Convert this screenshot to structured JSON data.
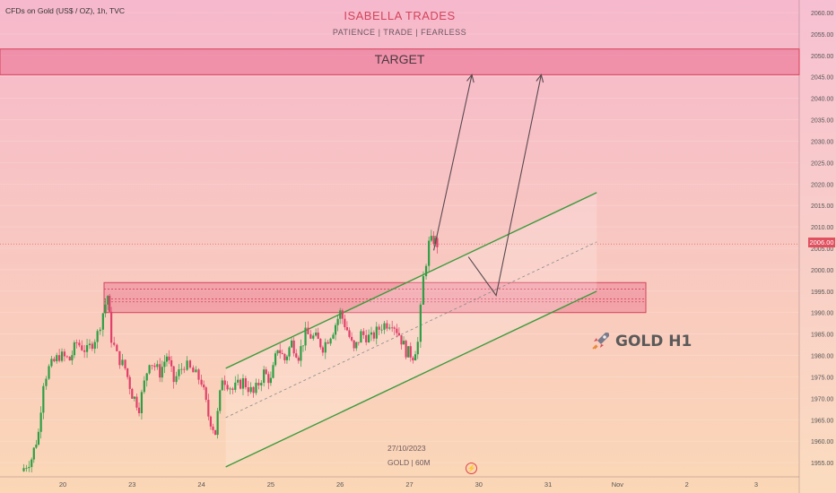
{
  "header": {
    "symbol": "CFDs on Gold (US$ / OZ), 1h, TVC",
    "title": "ISABELLA TRADES",
    "subtitle": "PATIENCE | TRADE | FEARLESS"
  },
  "annotations": {
    "target_label": "TARGET",
    "watermark": "GOLD H1",
    "bottom_date": "27/10/2023",
    "bottom_info": "GOLD | 60M",
    "current_price": "2006.00"
  },
  "colors": {
    "up": "#2e9e44",
    "down": "#e0406a",
    "channel": "#3d9a3d",
    "zone": "#e8718c",
    "arrow": "#5a4a50"
  },
  "chart_data": {
    "type": "candlestick",
    "title": "CFDs on Gold (US$ / OZ), 1h, TVC",
    "ylim": [
      1952,
      2062
    ],
    "y_ticks": [
      1955,
      1960,
      1965,
      1970,
      1975,
      1980,
      1985,
      1990,
      1995,
      2000,
      2005,
      2010,
      2015,
      2020,
      2025,
      2030,
      2035,
      2040,
      2045,
      2050,
      2055,
      2060
    ],
    "y_tick_labels": [
      "1955.00",
      "1960.00",
      "1965.00",
      "1970.00",
      "1975.00",
      "1980.00",
      "1985.00",
      "1990.00",
      "1995.00",
      "2000.00",
      "2005.00",
      "2010.00",
      "2015.00",
      "2020.00",
      "2025.00",
      "2030.00",
      "2035.00",
      "2040.00",
      "2045.00",
      "2050.00",
      "2055.00",
      "2060.00"
    ],
    "x_ticks": [
      {
        "label": "20",
        "day": 0
      },
      {
        "label": "23",
        "day": 1
      },
      {
        "label": "24",
        "day": 2
      },
      {
        "label": "25",
        "day": 3
      },
      {
        "label": "26",
        "day": 4
      },
      {
        "label": "27",
        "day": 5
      },
      {
        "label": "30",
        "day": 6
      },
      {
        "label": "31",
        "day": 7
      },
      {
        "label": "Nov",
        "day": 8
      },
      {
        "label": "2",
        "day": 9
      },
      {
        "label": "3",
        "day": 10
      }
    ],
    "last_price": 2006.0,
    "path": [
      [
        -0.6,
        1953
      ],
      [
        -0.45,
        1956
      ],
      [
        -0.35,
        1962
      ],
      [
        -0.28,
        1974
      ],
      [
        -0.2,
        1977
      ],
      [
        -0.05,
        1980
      ],
      [
        0.1,
        1979
      ],
      [
        0.2,
        1983
      ],
      [
        0.35,
        1981
      ],
      [
        0.5,
        1985
      ],
      [
        0.58,
        1990
      ],
      [
        0.65,
        1994
      ],
      [
        0.7,
        1984
      ],
      [
        0.78,
        1980
      ],
      [
        0.9,
        1977
      ],
      [
        1.0,
        1971
      ],
      [
        1.1,
        1968
      ],
      [
        1.25,
        1979
      ],
      [
        1.4,
        1976
      ],
      [
        1.5,
        1980
      ],
      [
        1.6,
        1974
      ],
      [
        1.75,
        1978
      ],
      [
        1.88,
        1976
      ],
      [
        2.0,
        1974
      ],
      [
        2.1,
        1966
      ],
      [
        2.2,
        1962
      ],
      [
        2.3,
        1975
      ],
      [
        2.45,
        1972
      ],
      [
        2.6,
        1974
      ],
      [
        2.75,
        1971
      ],
      [
        2.9,
        1976
      ],
      [
        3.0,
        1974
      ],
      [
        3.1,
        1982
      ],
      [
        3.2,
        1979
      ],
      [
        3.3,
        1983
      ],
      [
        3.4,
        1980
      ],
      [
        3.5,
        1985
      ],
      [
        3.65,
        1984
      ],
      [
        3.75,
        1982
      ],
      [
        3.9,
        1986
      ],
      [
        4.0,
        1990
      ],
      [
        4.1,
        1986
      ],
      [
        4.2,
        1981
      ],
      [
        4.3,
        1985
      ],
      [
        4.45,
        1984
      ],
      [
        4.6,
        1987
      ],
      [
        4.75,
        1988
      ],
      [
        4.85,
        1985
      ],
      [
        4.95,
        1981
      ],
      [
        5.05,
        1980
      ],
      [
        5.12,
        1983
      ],
      [
        5.2,
        1998
      ],
      [
        5.28,
        2006
      ],
      [
        5.35,
        2007
      ],
      [
        5.4,
        2006
      ]
    ],
    "channel": {
      "upper": {
        "start": {
          "day": 2.35,
          "price": 1977
        },
        "end": {
          "day": 7.7,
          "price": 2018
        }
      },
      "lower": {
        "start": {
          "day": 2.35,
          "price": 1954
        },
        "end": {
          "day": 7.7,
          "price": 1995
        }
      },
      "midline": {
        "start": {
          "day": 2.35,
          "price": 1965.5
        },
        "end": {
          "day": 7.7,
          "price": 2006.5
        }
      }
    },
    "zones": [
      {
        "name": "TARGET",
        "from": 2045.5,
        "to": 2051.5
      },
      {
        "name": "support",
        "from": 1990,
        "to": 1997
      }
    ],
    "support_lines": [
      1992.5,
      1993.2,
      1995.5
    ],
    "projection_arrows": [
      {
        "from": {
          "day": 5.35,
          "price": 2004.5
        },
        "to": {
          "day": 5.9,
          "price": 2045.5
        }
      },
      {
        "from": {
          "day": 5.85,
          "price": 2003
        },
        "via": {
          "day": 6.25,
          "price": 1994
        },
        "to": {
          "day": 6.9,
          "price": 2045.5
        }
      }
    ]
  }
}
